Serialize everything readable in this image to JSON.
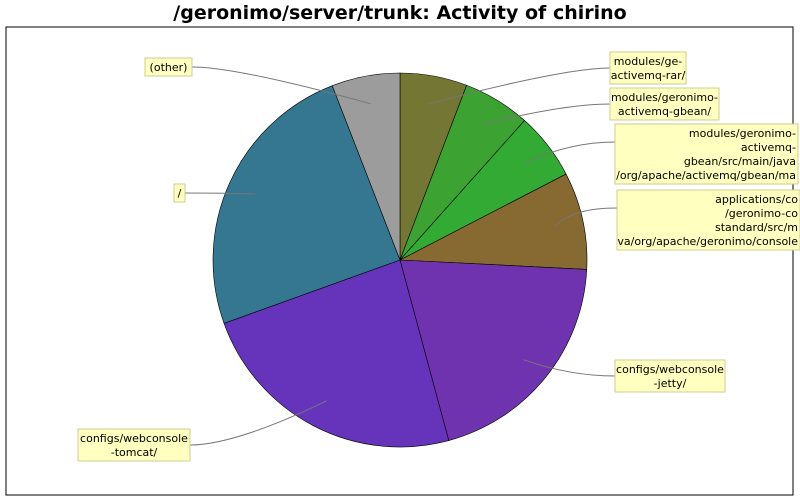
{
  "chart_data": {
    "type": "pie",
    "title": "/geronimo/server/trunk: Activity of chirino",
    "slices": [
      {
        "label": "modules/ge-activemq-rar/",
        "lines": [
          "modules/ge-",
          "activemq-rar/"
        ],
        "value": 5.8,
        "color": "#737733"
      },
      {
        "label": "modules/geronimo-activemq-gbean/",
        "lines": [
          "modules/geronimo-",
          "activemq-gbean/"
        ],
        "value": 5.8,
        "color": "#3ca332"
      },
      {
        "label": "modules/geronimo-activemq-gbean/src/main/java/org/apache/activemq/gbean/ma",
        "lines": [
          "modules/geronimo-",
          "activemq-",
          "gbean/src/main/java",
          "/org/apache/activemq/gbean/ma"
        ],
        "value": 5.8,
        "color": "#33aa33"
      },
      {
        "label": "applications/co/geronimo-constandard/src/mva/org/apache/geronimo/console",
        "lines": [
          "applications/co",
          "/geronimo-co",
          "standard/src/m",
          "va/org/apache/geronimo/console"
        ],
        "value": 8.4,
        "color": "#876a31"
      },
      {
        "label": "configs/webconsole-jetty/",
        "lines": [
          "configs/webconsole",
          "-jetty/"
        ],
        "value": 20.0,
        "color": "#7033b0"
      },
      {
        "label": "configs/webconsole-tomcat/",
        "lines": [
          "configs/webconsole",
          "-tomcat/"
        ],
        "value": 23.7,
        "color": "#6633bb"
      },
      {
        "label": "/",
        "lines": [
          "/"
        ],
        "value": 24.6,
        "color": "#357690"
      },
      {
        "label": "(other)",
        "lines": [
          "(other)"
        ],
        "value": 5.9,
        "color": "#9c9c9c"
      }
    ]
  }
}
